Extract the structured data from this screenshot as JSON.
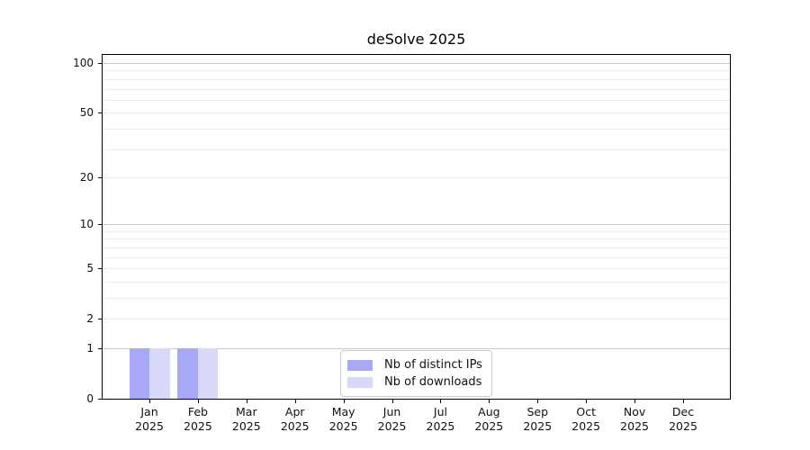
{
  "chart_data": {
    "type": "bar",
    "title": "deSolve 2025",
    "categories": [
      "Jan",
      "Feb",
      "Mar",
      "Apr",
      "May",
      "Jun",
      "Jul",
      "Aug",
      "Sep",
      "Oct",
      "Nov",
      "Dec"
    ],
    "year_label": "2025",
    "series": [
      {
        "name": "Nb of distinct IPs",
        "color": "#a8a8f8",
        "values": [
          1,
          1,
          0,
          0,
          0,
          0,
          0,
          0,
          0,
          0,
          0,
          0
        ]
      },
      {
        "name": "Nb of downloads",
        "color": "#d8d8f8",
        "values": [
          1,
          1,
          0,
          0,
          0,
          0,
          0,
          0,
          0,
          0,
          0,
          0
        ]
      }
    ],
    "yscale": "log1p",
    "ylim": [
      0,
      112
    ],
    "yticks": [
      0,
      1,
      2,
      5,
      10,
      20,
      50,
      100
    ],
    "major_gridlines": [
      1,
      10,
      100
    ],
    "minor_gridlines": [
      2,
      3,
      4,
      5,
      6,
      7,
      8,
      9,
      20,
      30,
      40,
      50,
      60,
      70,
      80,
      90
    ],
    "grid": true,
    "legend_position": "lower center",
    "colors": {
      "major_grid": "#c8c8c8",
      "minor_grid": "#ededed",
      "axis": "#000000",
      "tick_text": "#111111"
    }
  }
}
